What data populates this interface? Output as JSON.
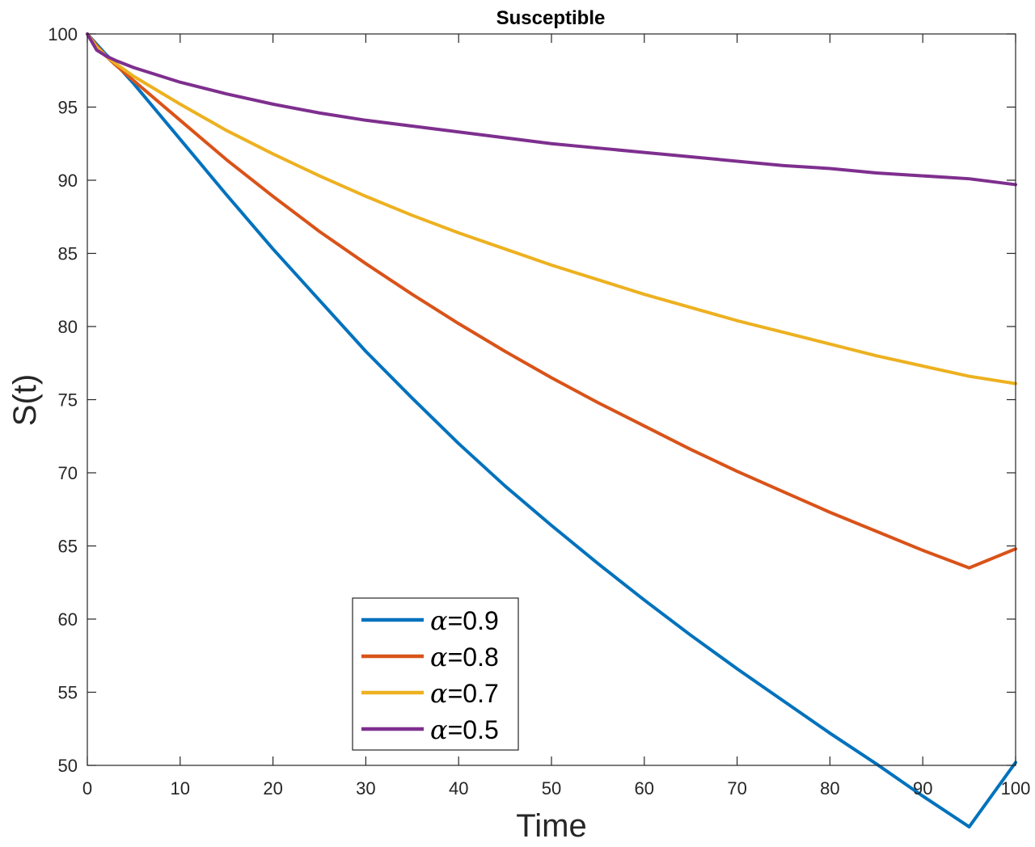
{
  "chart_data": {
    "type": "line",
    "title": "Susceptible",
    "xlabel": "Time",
    "ylabel": "S(t)",
    "xlim": [
      0,
      100
    ],
    "ylim": [
      50,
      100
    ],
    "xticks": [
      0,
      10,
      20,
      30,
      40,
      50,
      60,
      70,
      80,
      90,
      100
    ],
    "yticks": [
      50,
      55,
      60,
      65,
      70,
      75,
      80,
      85,
      90,
      95,
      100
    ],
    "grid": false,
    "legend_position": "bottom-center",
    "x": [
      0,
      1,
      2,
      3,
      5,
      10,
      15,
      20,
      25,
      30,
      35,
      40,
      45,
      50,
      55,
      60,
      65,
      70,
      75,
      80,
      85,
      90,
      95,
      100
    ],
    "series": [
      {
        "name": "α=0.9",
        "legend_symbol": "α",
        "legend_value": "=0.9",
        "color": "#0072BD",
        "values": [
          100,
          99.3,
          98.6,
          98.0,
          96.6,
          92.8,
          89.0,
          85.3,
          81.8,
          78.3,
          75.1,
          72.0,
          69.1,
          66.4,
          63.8,
          61.3,
          58.9,
          56.6,
          54.4,
          52.2,
          50.1,
          47.9,
          45.8,
          50.2
        ]
      },
      {
        "name": "α=0.8",
        "legend_symbol": "α",
        "legend_value": "=0.8",
        "color": "#D95319",
        "values": [
          100,
          99.2,
          98.5,
          97.9,
          96.8,
          94.1,
          91.4,
          88.9,
          86.5,
          84.3,
          82.2,
          80.2,
          78.3,
          76.5,
          74.8,
          73.2,
          71.6,
          70.1,
          68.7,
          67.3,
          66.0,
          64.7,
          63.5,
          64.8
        ]
      },
      {
        "name": "α=0.7",
        "legend_symbol": "α",
        "legend_value": "=0.7",
        "color": "#EDB120",
        "values": [
          100,
          99.1,
          98.5,
          98.0,
          97.1,
          95.2,
          93.4,
          91.8,
          90.3,
          88.9,
          87.6,
          86.4,
          85.3,
          84.2,
          83.2,
          82.2,
          81.3,
          80.4,
          79.6,
          78.8,
          78.0,
          77.3,
          76.6,
          76.1
        ]
      },
      {
        "name": "α=0.5",
        "legend_symbol": "α",
        "legend_value": "=0.5",
        "color": "#7E2F8E",
        "values": [
          100,
          98.9,
          98.5,
          98.2,
          97.7,
          96.7,
          95.9,
          95.2,
          94.6,
          94.1,
          93.7,
          93.3,
          92.9,
          92.5,
          92.2,
          91.9,
          91.6,
          91.3,
          91.0,
          90.8,
          90.5,
          90.3,
          90.1,
          89.7
        ]
      }
    ]
  }
}
